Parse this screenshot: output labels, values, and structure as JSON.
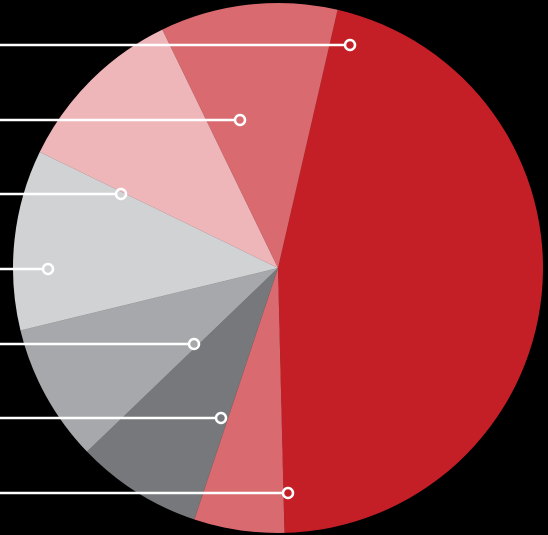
{
  "chart_data": {
    "type": "pie",
    "title": "",
    "legend": "none",
    "slices": [
      {
        "value": 46.0,
        "color": "#c41f26"
      },
      {
        "value": 5.5,
        "color": "#d96a70"
      },
      {
        "value": 7.7,
        "color": "#77787b"
      },
      {
        "value": 8.4,
        "color": "#a7a8ab"
      },
      {
        "value": 11.0,
        "color": "#d1d2d4"
      },
      {
        "value": 10.6,
        "color": "#efb6ba"
      },
      {
        "value": 10.8,
        "color": "#d96a70"
      }
    ],
    "callout_color": "#ffffff"
  }
}
